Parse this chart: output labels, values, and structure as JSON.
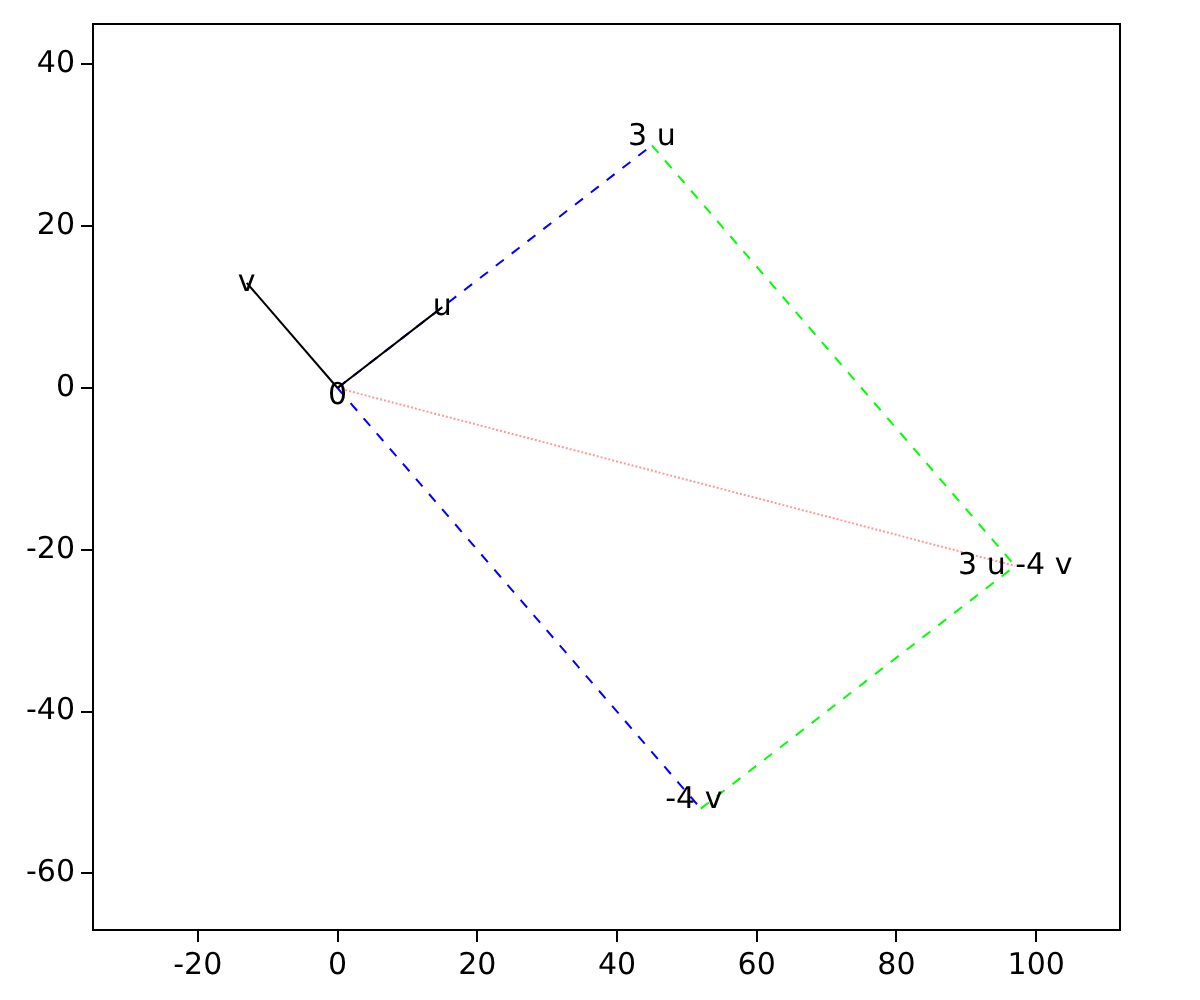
{
  "chart_data": {
    "type": "line",
    "series": [
      {
        "color": "#000000",
        "x": [
          0,
          15
        ],
        "values": [
          0,
          10
        ],
        "line_style": "solid"
      },
      {
        "color": "#000000",
        "x": [
          0,
          -13
        ],
        "values": [
          0,
          13
        ],
        "line_style": "solid"
      },
      {
        "color": "#0000ff",
        "x": [
          0,
          45
        ],
        "values": [
          0,
          30
        ],
        "line_style": "dashed"
      },
      {
        "color": "#0000ff",
        "x": [
          0,
          52
        ],
        "values": [
          0,
          -52
        ],
        "line_style": "dashed"
      },
      {
        "color": "#00ff00",
        "x": [
          45,
          97
        ],
        "values": [
          30,
          -22
        ],
        "line_style": "dashed"
      },
      {
        "color": "#00ff00",
        "x": [
          52,
          97
        ],
        "values": [
          -52,
          -22
        ],
        "line_style": "dashed"
      },
      {
        "color": "#ff9999",
        "x": [
          0,
          97
        ],
        "values": [
          0,
          -22
        ],
        "line_style": "dotted"
      }
    ],
    "annotations": [
      {
        "text": "0",
        "x": 0,
        "y": -1
      },
      {
        "text": "u",
        "x": 15,
        "y": 10
      },
      {
        "text": "v",
        "x": -13,
        "y": 13
      },
      {
        "text": "3 u",
        "x": 45,
        "y": 31
      },
      {
        "text": "-4 v",
        "x": 51,
        "y": -51
      },
      {
        "text": "3 u -4 v",
        "x": 97,
        "y": -22
      }
    ],
    "xlim": [
      -35,
      112
    ],
    "ylim": [
      -67,
      45
    ],
    "xticks": [
      -20,
      0,
      20,
      40,
      60,
      80,
      100
    ],
    "yticks": [
      -60,
      -40,
      -20,
      0,
      20,
      40
    ],
    "grid": false,
    "legend": false,
    "marker": "none"
  }
}
